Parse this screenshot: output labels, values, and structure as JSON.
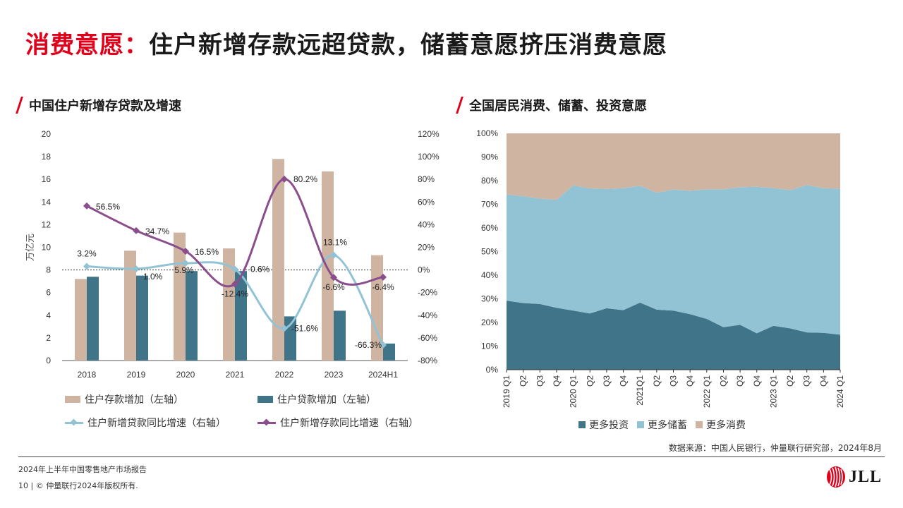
{
  "title": {
    "red": "消费意愿：",
    "black": "住户新增存款远超贷款，储蓄意愿挤压消费意愿"
  },
  "left_chart_title": "中国住户新增存贷款及增速",
  "right_chart_title": "全国居民消费、储蓄、投资意愿",
  "colors": {
    "deposit": "#cfb4a2",
    "loan": "#3f7489",
    "loan_growth": "#92c3d5",
    "deposit_growth": "#8a4e8c",
    "invest": "#3f7489",
    "save": "#92c3d5",
    "consume": "#cfb4a2",
    "brand_red": "#e1001a"
  },
  "chart_data": [
    {
      "type": "bar",
      "ylabel": "万亿元",
      "categories": [
        "2018",
        "2019",
        "2020",
        "2021",
        "2022",
        "2023",
        "2024H1"
      ],
      "ylim": [
        0,
        20
      ],
      "y2lim": [
        -80,
        120
      ],
      "y_ticks": [
        "0",
        "2",
        "4",
        "6",
        "8",
        "10",
        "12",
        "14",
        "16",
        "18",
        "20"
      ],
      "y2_ticks": [
        "-80%",
        "-60%",
        "-40%",
        "-20%",
        "0%",
        "20%",
        "40%",
        "60%",
        "80%",
        "100%",
        "120%"
      ],
      "series": [
        {
          "name": "住户存款增加（左轴）",
          "type": "bar",
          "axis": "left",
          "values": [
            7.2,
            9.7,
            11.3,
            9.9,
            17.8,
            16.7,
            9.3
          ]
        },
        {
          "name": "住户贷款增加（左轴）",
          "type": "bar",
          "axis": "left",
          "values": [
            7.4,
            7.5,
            7.9,
            7.9,
            3.9,
            4.4,
            1.5
          ]
        },
        {
          "name": "住户新增贷款同比增速（右轴）",
          "type": "line",
          "axis": "right",
          "values": [
            3.2,
            1.0,
            5.9,
            0.6,
            -51.6,
            13.1,
            -66.3
          ],
          "labels": [
            "3.2%",
            "1.0%",
            "5.9%",
            "0.6%",
            "-51.6%",
            "13.1%",
            "-66.3%"
          ]
        },
        {
          "name": "住户新增存款同比增速（右轴）",
          "type": "line",
          "axis": "right",
          "values": [
            56.5,
            34.7,
            16.5,
            -12.4,
            80.2,
            -6.6,
            -6.4
          ],
          "labels": [
            "56.5%",
            "34.7%",
            "16.5%",
            "-12.4%",
            "80.2%",
            "-6.6%",
            "-6.4%"
          ]
        }
      ]
    },
    {
      "type": "area",
      "stacked": true,
      "ylim": [
        0,
        100
      ],
      "y_ticks": [
        "0%",
        "10%",
        "20%",
        "30%",
        "40%",
        "50%",
        "60%",
        "70%",
        "80%",
        "90%",
        "100%"
      ],
      "x": [
        "2019 Q1",
        "Q2",
        "Q3",
        "Q4",
        "2020 Q1",
        "Q2",
        "Q3",
        "Q4",
        "2021Q1",
        "Q2",
        "Q3",
        "Q4",
        "2022 Q1",
        "Q2",
        "Q3",
        "Q4",
        "2023 Q1",
        "Q2",
        "Q3",
        "Q4",
        "2024 Q1"
      ],
      "series": [
        {
          "name": "更多投资",
          "values": [
            29.2,
            28.2,
            27.8,
            26.2,
            25.0,
            23.8,
            26.0,
            25.2,
            28.4,
            25.4,
            25.0,
            23.5,
            21.5,
            18.0,
            19.0,
            15.4,
            18.6,
            17.5,
            15.8,
            15.6,
            14.8
          ]
        },
        {
          "name": "更多储蓄",
          "values": [
            45.0,
            45.2,
            44.6,
            45.7,
            53.0,
            52.9,
            50.5,
            51.6,
            49.4,
            49.5,
            51.2,
            52.2,
            54.8,
            58.3,
            58.2,
            62.0,
            58.2,
            58.5,
            62.3,
            61.2,
            61.8
          ]
        },
        {
          "name": "更多消费",
          "values": [
            25.8,
            26.6,
            27.6,
            28.1,
            22.0,
            23.3,
            23.5,
            23.2,
            22.2,
            25.1,
            23.8,
            24.3,
            23.7,
            23.7,
            22.8,
            22.6,
            23.2,
            24.0,
            21.9,
            23.2,
            23.4
          ]
        }
      ]
    }
  ],
  "source": "数据来源：中国人民银行，仲量联行研究部，2024年8月",
  "footer": {
    "report": "2024年上半年中国零售地产市场报告",
    "page": "10",
    "copyright": "© 仲量联行2024年版权所有."
  },
  "logo_text": "JLL"
}
